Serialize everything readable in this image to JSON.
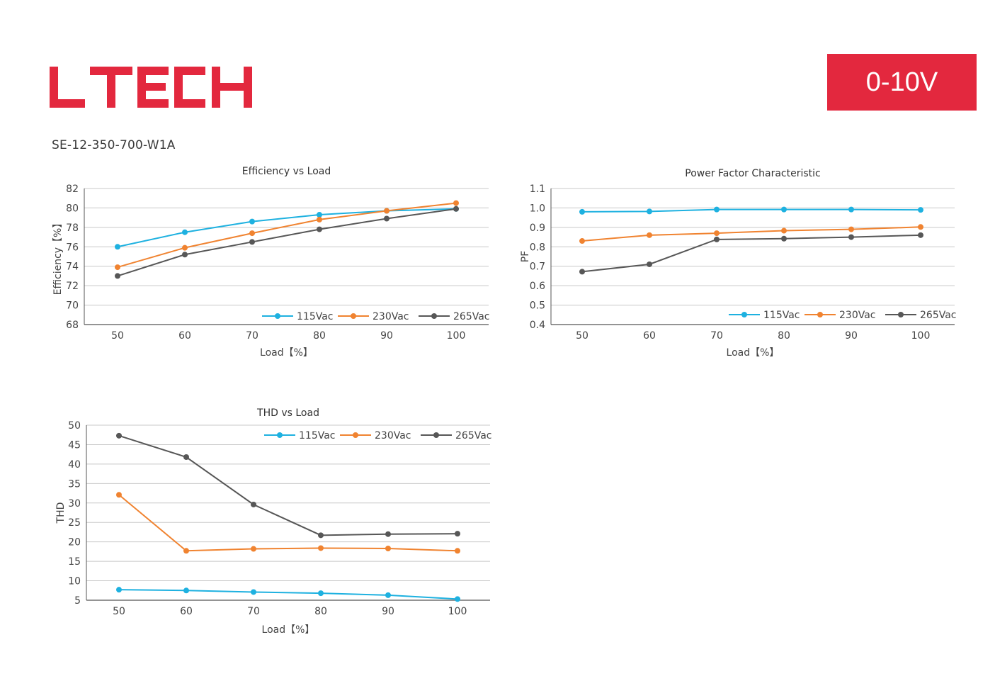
{
  "brand": {
    "logo_text": "LTECH",
    "color": "#e3283e"
  },
  "badge": {
    "label": "0-10V",
    "color": "#e3283e"
  },
  "model": "SE-12-350-700-W1A",
  "colors": {
    "115Vac": "#1eb1e0",
    "230Vac": "#f08330",
    "265Vac": "#575757",
    "grid": "#c8c8c8",
    "axis": "#555555"
  },
  "chart_data": [
    {
      "type": "line",
      "title": "Efficiency vs Load",
      "xlabel": "Load【%】",
      "ylabel": "Efficiency【%】",
      "x": [
        50,
        60,
        70,
        80,
        90,
        100
      ],
      "xticks": [
        "50",
        "60",
        "70",
        "80",
        "90",
        "100"
      ],
      "ylim": [
        68,
        82
      ],
      "yticks": [
        "68",
        "70",
        "72",
        "74",
        "76",
        "78",
        "80",
        "82"
      ],
      "grid": true,
      "legend": "bottom-right",
      "series": [
        {
          "name": "115Vac",
          "values": [
            76.0,
            77.5,
            78.6,
            79.3,
            79.7,
            79.9
          ]
        },
        {
          "name": "230Vac",
          "values": [
            73.9,
            75.9,
            77.4,
            78.8,
            79.7,
            80.5
          ]
        },
        {
          "name": "265Vac",
          "values": [
            73.0,
            75.2,
            76.5,
            77.8,
            78.9,
            79.9
          ]
        }
      ]
    },
    {
      "type": "line",
      "title": "Power Factor Characteristic",
      "xlabel": "Load【%】",
      "ylabel": "PF",
      "x": [
        50,
        60,
        70,
        80,
        90,
        100
      ],
      "xticks": [
        "50",
        "60",
        "70",
        "80",
        "90",
        "100"
      ],
      "ylim": [
        0.4,
        1.1
      ],
      "yticks": [
        "0.4",
        "0.5",
        "0.6",
        "0.7",
        "0.8",
        "0.9",
        "1.0",
        "1.1"
      ],
      "grid": true,
      "legend": "bottom-right",
      "series": [
        {
          "name": "115Vac",
          "values": [
            0.98,
            0.982,
            0.992,
            0.992,
            0.992,
            0.99
          ]
        },
        {
          "name": "230Vac",
          "values": [
            0.83,
            0.86,
            0.87,
            0.883,
            0.89,
            0.902
          ]
        },
        {
          "name": "265Vac",
          "values": [
            0.672,
            0.71,
            0.838,
            0.842,
            0.85,
            0.86
          ]
        }
      ]
    },
    {
      "type": "line",
      "title": "THD vs Load",
      "xlabel": "Load【%】",
      "ylabel": "THD",
      "x": [
        50,
        60,
        70,
        80,
        90,
        100
      ],
      "xticks": [
        "50",
        "60",
        "70",
        "80",
        "90",
        "100"
      ],
      "ylim": [
        5,
        50
      ],
      "yticks": [
        "5",
        "10",
        "15",
        "20",
        "25",
        "30",
        "35",
        "40",
        "45",
        "50"
      ],
      "grid": true,
      "legend": "top-right",
      "series": [
        {
          "name": "115Vac",
          "values": [
            7.7,
            7.5,
            7.1,
            6.8,
            6.3,
            5.3
          ]
        },
        {
          "name": "230Vac",
          "values": [
            32.1,
            17.7,
            18.2,
            18.4,
            18.3,
            17.7
          ]
        },
        {
          "name": "265Vac",
          "values": [
            47.3,
            41.8,
            29.6,
            21.7,
            22.0,
            22.1
          ]
        }
      ]
    }
  ]
}
